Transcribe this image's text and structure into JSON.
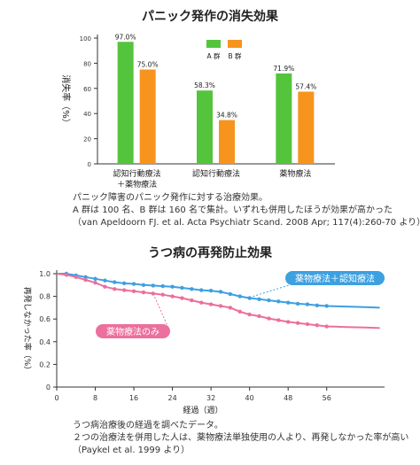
{
  "chart_data": [
    {
      "type": "bar",
      "title": "パニック発作の消失効果",
      "ylabel": "消失率（%）",
      "ylim": [
        0,
        100
      ],
      "yticks": [
        0,
        20,
        40,
        60,
        80,
        100
      ],
      "categories": [
        [
          "認知行動療法",
          "＋薬物療法"
        ],
        [
          "認知行動療法"
        ],
        [
          "薬物療法"
        ]
      ],
      "series": [
        {
          "name": "A 群",
          "color": "#54c43c",
          "values": [
            97.0,
            58.3,
            71.9
          ],
          "labels": [
            "97.0%",
            "58.3%",
            "71.9%"
          ]
        },
        {
          "name": "B 群",
          "color": "#f7941d",
          "values": [
            75.0,
            34.8,
            57.4
          ],
          "labels": [
            "75.0%",
            "34.8%",
            "57.4%"
          ]
        }
      ],
      "legend_position": "top-right",
      "notes": [
        "パニック障害のパニック発作に対する治療効果。",
        "A 群は 100 名、B 群は 160 名で集計。いずれも併用したほうが効果が高かった",
        "（van Apeldoorn FJ. et al. Acta Psychiatr Scand. 2008 Apr; 117(4):260-70 より）"
      ]
    },
    {
      "type": "line",
      "title": "うつ病の再発防止効果",
      "xlabel": "経過（週）",
      "ylabel": "再発しなかった率（%）",
      "xlim": [
        0,
        68
      ],
      "ylim": [
        0,
        1.0
      ],
      "xticks": [
        0,
        8,
        16,
        24,
        32,
        40,
        48,
        56
      ],
      "yticks": [
        0,
        0.2,
        0.4,
        0.6,
        0.8,
        1.0
      ],
      "ytick_labels": [
        "0",
        "0.2",
        "0.4",
        "0.6",
        "0.8",
        "1.0"
      ],
      "series": [
        {
          "name": "薬物療法＋認知療法",
          "color": "#3da0e0",
          "points": [
            [
              0,
              1.0
            ],
            [
              2,
              1.0
            ],
            [
              4,
              0.985
            ],
            [
              6,
              0.97
            ],
            [
              8,
              0.955
            ],
            [
              10,
              0.94
            ],
            [
              12,
              0.925
            ],
            [
              14,
              0.915
            ],
            [
              16,
              0.91
            ],
            [
              18,
              0.9
            ],
            [
              20,
              0.895
            ],
            [
              22,
              0.89
            ],
            [
              24,
              0.885
            ],
            [
              26,
              0.875
            ],
            [
              28,
              0.865
            ],
            [
              30,
              0.855
            ],
            [
              32,
              0.85
            ],
            [
              34,
              0.84
            ],
            [
              36,
              0.82
            ],
            [
              38,
              0.8
            ],
            [
              40,
              0.785
            ],
            [
              42,
              0.775
            ],
            [
              44,
              0.765
            ],
            [
              46,
              0.755
            ],
            [
              48,
              0.745
            ],
            [
              50,
              0.735
            ],
            [
              52,
              0.73
            ],
            [
              54,
              0.72
            ],
            [
              56,
              0.715
            ],
            [
              60,
              0.71
            ],
            [
              64,
              0.705
            ],
            [
              67,
              0.7
            ]
          ],
          "label_text": "薬物療法＋認知療法"
        },
        {
          "name": "薬物療法のみ",
          "color": "#ec6f9d",
          "points": [
            [
              0,
              1.0
            ],
            [
              2,
              0.99
            ],
            [
              4,
              0.97
            ],
            [
              6,
              0.945
            ],
            [
              8,
              0.92
            ],
            [
              10,
              0.885
            ],
            [
              12,
              0.865
            ],
            [
              14,
              0.855
            ],
            [
              16,
              0.845
            ],
            [
              18,
              0.835
            ],
            [
              20,
              0.825
            ],
            [
              22,
              0.815
            ],
            [
              24,
              0.8
            ],
            [
              26,
              0.785
            ],
            [
              28,
              0.765
            ],
            [
              30,
              0.745
            ],
            [
              32,
              0.73
            ],
            [
              34,
              0.715
            ],
            [
              36,
              0.7
            ],
            [
              38,
              0.665
            ],
            [
              40,
              0.64
            ],
            [
              42,
              0.625
            ],
            [
              44,
              0.605
            ],
            [
              46,
              0.59
            ],
            [
              48,
              0.575
            ],
            [
              50,
              0.565
            ],
            [
              52,
              0.555
            ],
            [
              54,
              0.545
            ],
            [
              56,
              0.535
            ],
            [
              60,
              0.53
            ],
            [
              64,
              0.525
            ],
            [
              67,
              0.52
            ]
          ],
          "label_text": "薬物療法のみ"
        }
      ],
      "notes": [
        "うつ病治療後の経過を調べたデータ。",
        "２つの治療法を併用した人は、薬物療法単独使用の人より、再発しなかった率が高い",
        "（Paykel et al. 1999 より）"
      ]
    }
  ]
}
